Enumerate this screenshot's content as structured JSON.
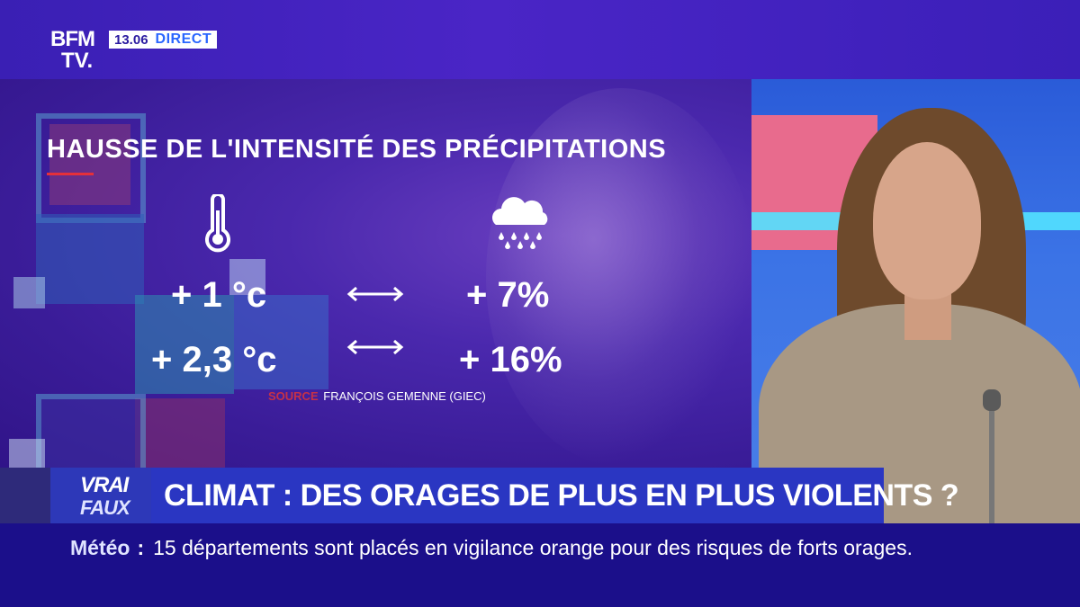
{
  "channel": {
    "logo_line1": "BFM",
    "logo_line2": "TV.",
    "time": "13.06",
    "live_label": "DIRECT"
  },
  "graphic": {
    "title": "HAUSSE DE L'INTENSITÉ DES PRÉCIPITATIONS",
    "rows": [
      {
        "temperature": "+ 1 °c",
        "precipitation": "+ 7%"
      },
      {
        "temperature": "+ 2,3 °c",
        "precipitation": "+ 16%"
      }
    ],
    "source_label": "SOURCE",
    "source_text": "FRANÇOIS GEMENNE (GIEC)",
    "icons": [
      "thermometer-icon",
      "rain-cloud-icon",
      "double-arrow-icon"
    ]
  },
  "lower_third": {
    "badge_line1": "VRAI",
    "badge_line2": "FAUX",
    "headline": "CLIMAT : DES ORAGES DE PLUS EN PLUS VIOLENTS ?"
  },
  "ticker": {
    "category": "Météo",
    "separator": ":",
    "text": "15 départements sont placés en vigilance orange pour des risques de forts orages."
  },
  "colors": {
    "accent_red": "#e5303a",
    "brand_blue": "#2a36c2",
    "ticker_bg": "#1b0f8a"
  }
}
